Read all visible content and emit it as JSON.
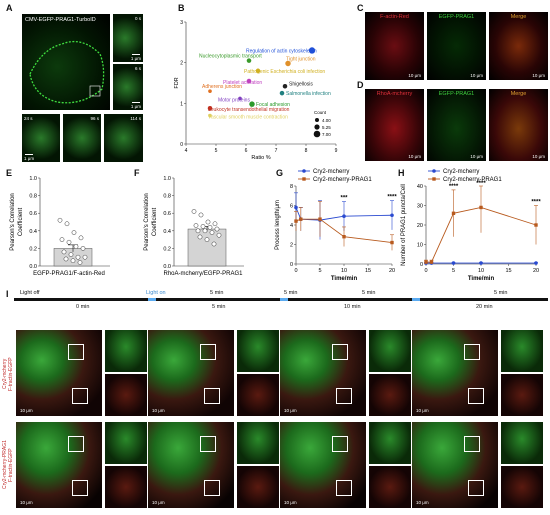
{
  "panel_labels": {
    "A": "A",
    "B": "B",
    "C": "C",
    "D": "D",
    "E": "E",
    "F": "F",
    "G": "G",
    "H": "H",
    "I": "I"
  },
  "panelA": {
    "title": "CMV-EGFP-PRAG1-TurboID",
    "times": [
      "0 s",
      "6 s",
      "24 s",
      "96 s",
      "114 s"
    ],
    "scale": "1 μm"
  },
  "panelC": {
    "labels": [
      "F-actin-Red",
      "EGFP-PRAG1",
      "Merge"
    ],
    "scale": "10 μm",
    "colors": [
      "#e0303a",
      "#3fcf3f",
      "#e0a030"
    ]
  },
  "panelD": {
    "labels": [
      "RhoA-mcherry",
      "EGFP-PRAG1",
      "Merge"
    ],
    "scale": "10 μm",
    "colors": [
      "#e0303a",
      "#3fcf3f",
      "#e0a030"
    ]
  },
  "panelI": {
    "times": [
      "Light off",
      "Light on",
      "0 min",
      "5 min",
      "5 min",
      "5 min",
      "10 min",
      "5 min",
      "20 min",
      "5 min"
    ],
    "row_labels": [
      "Cry2-mcherry\nF-tractin-EGFP",
      "Cry2-mcherry-PRAG1\nF-tractin-EGFP"
    ],
    "scale": "10 μm"
  },
  "chart_data": [
    {
      "id": "B",
      "type": "scatter",
      "xlabel": "Ratio %",
      "ylabel": "FDR",
      "xlim": [
        4,
        9
      ],
      "ylim": [
        0,
        3
      ],
      "xticks": [
        4,
        5,
        6,
        7,
        8,
        9
      ],
      "yticks": [
        0,
        1,
        2,
        3
      ],
      "legend_title": "Count",
      "legend": [
        "4.00",
        "5.25",
        "7.00"
      ],
      "points": [
        {
          "label": "Regulation of actin cytoskeleton",
          "x": 8.2,
          "y": 2.3,
          "color": "#2050d8",
          "size": 7
        },
        {
          "label": "Nucleocytoplasmic transport",
          "x": 6.1,
          "y": 2.05,
          "color": "#3a9a2a",
          "size": 5
        },
        {
          "label": "Tight junction",
          "x": 7.4,
          "y": 1.98,
          "color": "#e0902a",
          "size": 6
        },
        {
          "label": "Pathogenic Escherichia coli infection",
          "x": 6.4,
          "y": 1.8,
          "color": "#d0b020",
          "size": 5
        },
        {
          "label": "Platelet activation",
          "x": 6.1,
          "y": 1.55,
          "color": "#c040c0",
          "size": 5
        },
        {
          "label": "Shigellosis",
          "x": 7.3,
          "y": 1.42,
          "color": "#222222",
          "size": 5
        },
        {
          "label": "Salmonella infection",
          "x": 7.2,
          "y": 1.25,
          "color": "#208080",
          "size": 5
        },
        {
          "label": "Adherens junction",
          "x": 4.8,
          "y": 1.3,
          "color": "#e07020",
          "size": 4
        },
        {
          "label": "Motor proteins",
          "x": 5.8,
          "y": 1.12,
          "color": "#8040c0",
          "size": 4
        },
        {
          "label": "Focal adhesion",
          "x": 6.2,
          "y": 0.98,
          "color": "#2a9a2a",
          "size": 6
        },
        {
          "label": "Leukocyte transendothelial migration",
          "x": 4.8,
          "y": 0.88,
          "color": "#c03020",
          "size": 5
        },
        {
          "label": "Vascular smooth muscle contraction",
          "x": 4.8,
          "y": 0.7,
          "color": "#e0d060",
          "size": 4
        }
      ]
    },
    {
      "id": "E",
      "type": "bar",
      "ylabel": "Pearson's Correlation  Coefficient",
      "xlabel": "EGFP-PRAG1/F-actin-Red",
      "ylim": [
        0,
        1.0
      ],
      "yticks": [
        0.0,
        0.2,
        0.4,
        0.6,
        0.8,
        1.0
      ],
      "mean": 0.2,
      "sem": 0.04,
      "points": [
        0.52,
        0.48,
        0.38,
        0.32,
        0.3,
        0.27,
        0.22,
        0.2,
        0.16,
        0.13,
        0.1,
        0.1,
        0.08,
        0.06,
        0.04
      ]
    },
    {
      "id": "F",
      "type": "bar",
      "ylabel": "Pearson's Correlation  Coefficient",
      "xlabel": "RhoA-mcherry/EGFP-PRAG1",
      "ylim": [
        0,
        1.0
      ],
      "yticks": [
        0.0,
        0.2,
        0.4,
        0.6,
        0.8,
        1.0
      ],
      "mean": 0.42,
      "sem": 0.03,
      "points": [
        0.62,
        0.58,
        0.5,
        0.48,
        0.46,
        0.45,
        0.44,
        0.42,
        0.4,
        0.4,
        0.38,
        0.35,
        0.33,
        0.3,
        0.25
      ]
    },
    {
      "id": "G",
      "type": "line",
      "xlabel": "Time/min",
      "ylabel": "Process length/μm",
      "xlim": [
        0,
        20
      ],
      "ylim": [
        0,
        8
      ],
      "xticks": [
        0,
        5,
        10,
        15,
        20
      ],
      "yticks": [
        0,
        2,
        4,
        6,
        8
      ],
      "x": [
        0,
        1,
        5,
        10,
        20
      ],
      "series": [
        {
          "name": "Cry2-mcherry",
          "color": "#2a4ad0",
          "values": [
            5.8,
            4.6,
            4.5,
            4.9,
            5.0
          ],
          "err": [
            1.5,
            1.2,
            2.0,
            1.5,
            1.5
          ]
        },
        {
          "name": "Cry2-mcherry-PRAG1",
          "color": "#b85a1e",
          "values": [
            4.4,
            4.6,
            4.6,
            2.8,
            2.2
          ],
          "err": [
            1.0,
            1.2,
            1.8,
            1.0,
            0.8
          ]
        }
      ],
      "annotations": [
        {
          "x": 10,
          "text": "***"
        },
        {
          "x": 20,
          "text": "****"
        }
      ]
    },
    {
      "id": "H",
      "type": "line",
      "xlabel": "Time/min",
      "ylabel": "Number of PRAG1 puncta/Cell",
      "xlim": [
        0,
        20
      ],
      "ylim": [
        0,
        40
      ],
      "xticks": [
        0,
        5,
        10,
        15,
        20
      ],
      "yticks": [
        0,
        10,
        20,
        30,
        40
      ],
      "x": [
        0,
        1,
        5,
        10,
        20
      ],
      "series": [
        {
          "name": "Cry2-mcherry",
          "color": "#2a4ad0",
          "values": [
            0.5,
            0.5,
            0.5,
            0.5,
            0.5
          ],
          "err": [
            0.2,
            0.2,
            0.2,
            0.2,
            0.2
          ]
        },
        {
          "name": "Cry2-mcherry-PRAG1",
          "color": "#b85a1e",
          "values": [
            1,
            1,
            26,
            29,
            20
          ],
          "err": [
            1,
            1,
            12,
            13,
            10
          ]
        }
      ],
      "annotations": [
        {
          "x": 5,
          "text": "****"
        },
        {
          "x": 10,
          "text": "****"
        },
        {
          "x": 20,
          "text": "****"
        }
      ]
    }
  ]
}
